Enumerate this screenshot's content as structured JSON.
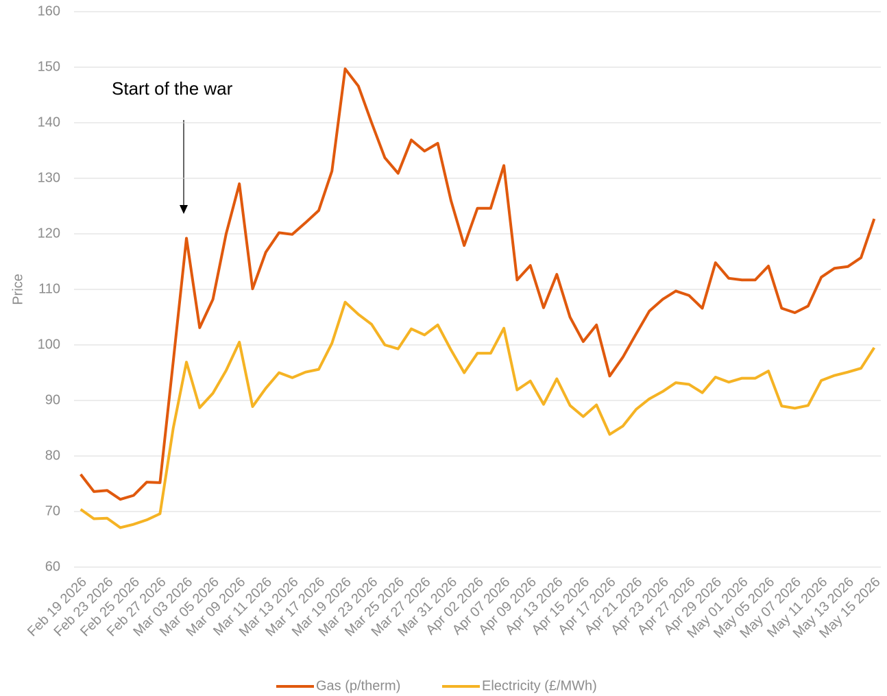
{
  "chart_data": {
    "type": "line",
    "y_label": "Price",
    "annotation": "Start of the war",
    "categories": [
      "Feb 19 2026",
      null,
      "Feb 23 2026",
      null,
      "Feb 25 2026",
      null,
      "Feb 27 2026",
      null,
      "Mar 03 2026",
      null,
      "Mar 05 2026",
      null,
      "Mar 09 2026",
      null,
      "Mar 11 2026",
      null,
      "Mar 13 2026",
      null,
      "Mar 17 2026",
      null,
      "Mar 19 2026",
      null,
      "Mar 23 2026",
      null,
      "Mar 25 2026",
      null,
      "Mar 27 2026",
      null,
      "Mar 31 2026",
      null,
      "Apr 02 2026",
      null,
      "Apr 07 2026",
      null,
      "Apr 09 2026",
      null,
      "Apr 13 2026",
      null,
      "Apr 15 2026",
      null,
      "Apr 17 2026",
      null,
      "Apr 21 2026",
      null,
      "Apr 23 2026",
      null,
      "Apr 27 2026",
      null,
      "Apr 29 2026",
      null,
      "May 01 2026",
      null,
      "May 05 2026",
      null,
      "May 07 2026",
      null,
      "May 11 2026",
      null,
      "May 13 2026",
      null,
      "May 15 2026"
    ],
    "series": [
      {
        "name": "Gas (p/therm)",
        "color": "#e0590d",
        "values": [
          76.7,
          73.6,
          73.8,
          72.2,
          72.9,
          75.3,
          75.2,
          97,
          119.2,
          103.1,
          108.2,
          120,
          129,
          110.1,
          116.7,
          120.2,
          119.9,
          122,
          124.2,
          131.3,
          149.7,
          146.6,
          140,
          133.7,
          130.9,
          136.9,
          134.9,
          136.3,
          126,
          117.9,
          124.6,
          124.6,
          132.3,
          111.7,
          114.3,
          106.7,
          112.7,
          105,
          100.6,
          103.6,
          94.4,
          97.8,
          102,
          106.1,
          108.2,
          109.7,
          108.9,
          106.6,
          114.8,
          112,
          111.7,
          111.7,
          114.2,
          106.6,
          105.8,
          107,
          112.2,
          113.8,
          114.1,
          115.7,
          122.7
        ]
      },
      {
        "name": "Electricity (£/MWh)",
        "color": "#f5b324",
        "values": [
          70.4,
          68.7,
          68.8,
          67.1,
          67.7,
          68.5,
          69.6,
          85,
          96.9,
          88.7,
          91.3,
          95.4,
          100.5,
          88.9,
          92.2,
          95,
          94.1,
          95.1,
          95.6,
          100.3,
          107.7,
          105.5,
          103.7,
          100,
          99.3,
          102.9,
          101.8,
          103.6,
          99.1,
          95,
          98.5,
          98.5,
          103,
          91.9,
          93.5,
          89.3,
          93.9,
          89.1,
          87.1,
          89.2,
          83.9,
          85.4,
          88.4,
          90.3,
          91.6,
          93.2,
          92.9,
          91.4,
          94.2,
          93.3,
          94,
          94,
          95.3,
          89,
          88.6,
          89.1,
          93.6,
          94.5,
          95.1,
          95.8,
          99.5
        ]
      }
    ],
    "ylim": [
      60,
      160
    ],
    "yticks": [
      60,
      70,
      80,
      90,
      100,
      110,
      120,
      130,
      140,
      150,
      160
    ],
    "grid": true,
    "legend": "bottom"
  }
}
